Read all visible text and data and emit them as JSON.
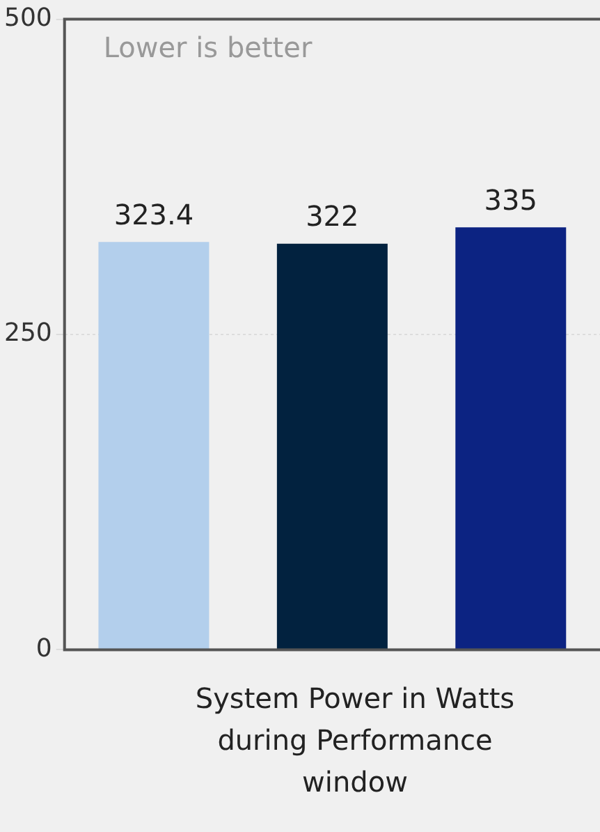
{
  "chart_data": {
    "type": "bar",
    "categories": [
      null,
      null,
      null
    ],
    "values": [
      323.4,
      322,
      335
    ],
    "colors": [
      "#b3cfec",
      "#02223f",
      "#0c2382"
    ],
    "ylim": [
      0,
      500
    ],
    "yticks": [
      0,
      250,
      500
    ],
    "grid": "y",
    "data_labels": true,
    "annotations": [
      "Lower is better"
    ],
    "xlabel": "System Power in Watts during Performance window"
  }
}
